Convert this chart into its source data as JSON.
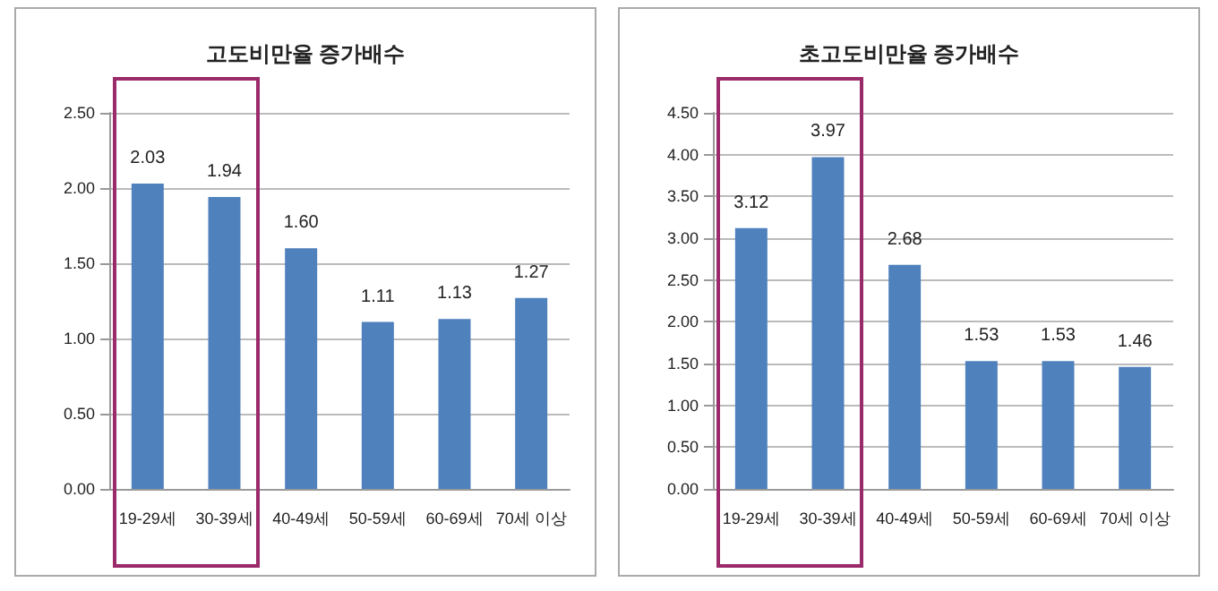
{
  "chart_data": [
    {
      "type": "bar",
      "title": "고도비만율 증가배수",
      "categories": [
        "19-29세",
        "30-39세",
        "40-49세",
        "50-59세",
        "60-69세",
        "70세 이상"
      ],
      "values": [
        2.03,
        1.94,
        1.6,
        1.11,
        1.13,
        1.27
      ],
      "value_labels": [
        "2.03",
        "1.94",
        "1.60",
        "1.11",
        "1.13",
        "1.27"
      ],
      "color": "#4f81bd",
      "ylim": [
        0,
        2.5
      ],
      "yticks": [
        {
          "value": 0,
          "label": "0.00"
        },
        {
          "value": 0.5,
          "label": "0.50"
        },
        {
          "value": 1,
          "label": "1.00"
        },
        {
          "value": 1.5,
          "label": "1.50"
        },
        {
          "value": 2,
          "label": "2.00"
        },
        {
          "value": 2.5,
          "label": "2.50"
        }
      ],
      "grid": "y"
    },
    {
      "type": "bar",
      "title": "초고도비만율 증가배수",
      "categories": [
        "19-29세",
        "30-39세",
        "40-49세",
        "50-59세",
        "60-69세",
        "70세 이상"
      ],
      "values": [
        3.12,
        3.97,
        2.68,
        1.53,
        1.53,
        1.46
      ],
      "value_labels": [
        "3.12",
        "3.97",
        "2.68",
        "1.53",
        "1.53",
        "1.46"
      ],
      "color": "#4f81bd",
      "ylim": [
        0,
        4.5
      ],
      "yticks": [
        {
          "value": 0,
          "label": "0.00"
        },
        {
          "value": 0.5,
          "label": "0.50"
        },
        {
          "value": 1,
          "label": "1.00"
        },
        {
          "value": 1.5,
          "label": "1.50"
        },
        {
          "value": 2,
          "label": "2.00"
        },
        {
          "value": 2.5,
          "label": "2.50"
        },
        {
          "value": 3,
          "label": "3.00"
        },
        {
          "value": 3.5,
          "label": "3.50"
        },
        {
          "value": 4,
          "label": "4.00"
        },
        {
          "value": 4.5,
          "label": "4.50"
        }
      ],
      "grid": "y"
    }
  ]
}
